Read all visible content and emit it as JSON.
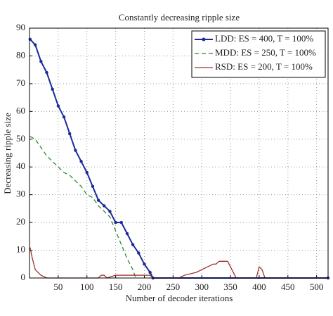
{
  "chart_data": {
    "type": "line",
    "title": "Constantly decreasing ripple size",
    "x_label": "Number of decoder iterations",
    "y_label": "Decreasing ripple size",
    "xlim": [
      0,
      520
    ],
    "ylim": [
      0,
      90
    ],
    "xticks": [
      50,
      100,
      150,
      200,
      250,
      300,
      350,
      400,
      450,
      500
    ],
    "yticks": [
      0,
      10,
      20,
      30,
      40,
      50,
      60,
      70,
      80,
      90
    ],
    "grid": true,
    "legend": "upper right",
    "series": [
      {
        "name": "LDD: ES = 400, T = 100%",
        "color": "#1a2a9c",
        "style": "solid",
        "marker": "dot",
        "x": [
          1,
          10,
          20,
          30,
          40,
          50,
          60,
          70,
          80,
          90,
          100,
          110,
          120,
          130,
          140,
          150,
          160,
          170,
          180,
          190,
          200,
          210,
          215,
          520
        ],
        "values": [
          86,
          84,
          78,
          74,
          68,
          62,
          58,
          52,
          46,
          42,
          38,
          33,
          28,
          26,
          24,
          20,
          20,
          16,
          12,
          9,
          5,
          2,
          0,
          0
        ]
      },
      {
        "name": "MDD: ES = 250, T = 100%",
        "color": "#2e8b2e",
        "style": "dashed",
        "marker": "none",
        "x": [
          1,
          10,
          20,
          30,
          40,
          50,
          60,
          70,
          80,
          90,
          100,
          110,
          120,
          130,
          140,
          150,
          160,
          170,
          180,
          185
        ],
        "values": [
          51,
          50,
          47,
          44,
          42,
          40,
          38,
          37,
          35,
          33,
          30,
          29,
          26,
          24,
          22,
          17,
          12,
          7,
          3,
          0
        ]
      },
      {
        "name": "RSD: ES = 200, T = 100%",
        "color": "#a0302e",
        "style": "solid",
        "marker": "none",
        "x": [
          1,
          5,
          10,
          20,
          30,
          120,
          125,
          130,
          135,
          150,
          210,
          215,
          260,
          270,
          290,
          300,
          310,
          320,
          325,
          330,
          345,
          350,
          355,
          360,
          395,
          400,
          405,
          410,
          520
        ],
        "values": [
          11,
          7,
          3,
          1,
          0,
          0,
          1,
          1,
          0,
          1,
          1,
          0,
          0,
          1,
          2,
          3,
          4,
          5,
          5,
          6,
          6,
          4,
          2,
          0,
          0,
          4,
          3,
          0,
          0
        ]
      }
    ]
  }
}
